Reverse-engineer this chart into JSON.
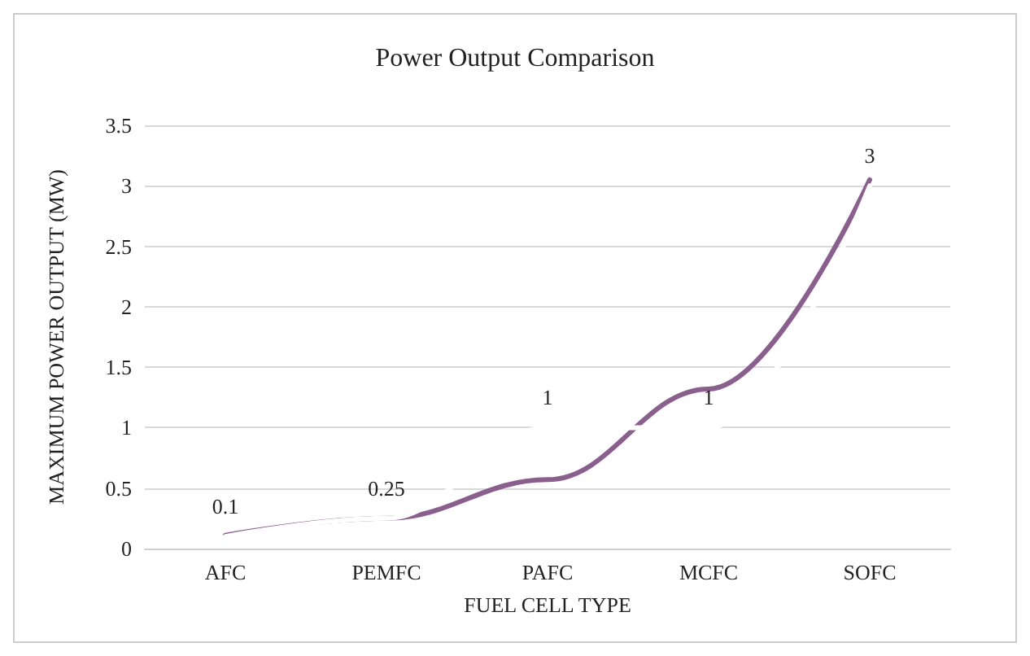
{
  "chart_data": {
    "type": "line",
    "title": "Power Output Comparison",
    "xlabel": "FUEL CELL TYPE",
    "ylabel": "MAXIMUM POWER OUTPUT (MW)",
    "categories": [
      "AFC",
      "PEMFC",
      "PAFC",
      "MCFC",
      "SOFC"
    ],
    "series": [
      {
        "color": "#ffffff",
        "values": [
          0.1,
          0.25,
          1,
          1,
          3
        ],
        "data_labels": true
      },
      {
        "color": "#8a5f8e",
        "values": [
          0.11,
          0.25,
          0.57,
          1.32,
          3.05
        ]
      }
    ],
    "ylim": [
      0,
      3.5
    ],
    "yticks": [
      0,
      0.5,
      1,
      1.5,
      2,
      2.5,
      3,
      3.5
    ],
    "grid": "y",
    "marker": "none",
    "line_style": "solid"
  }
}
